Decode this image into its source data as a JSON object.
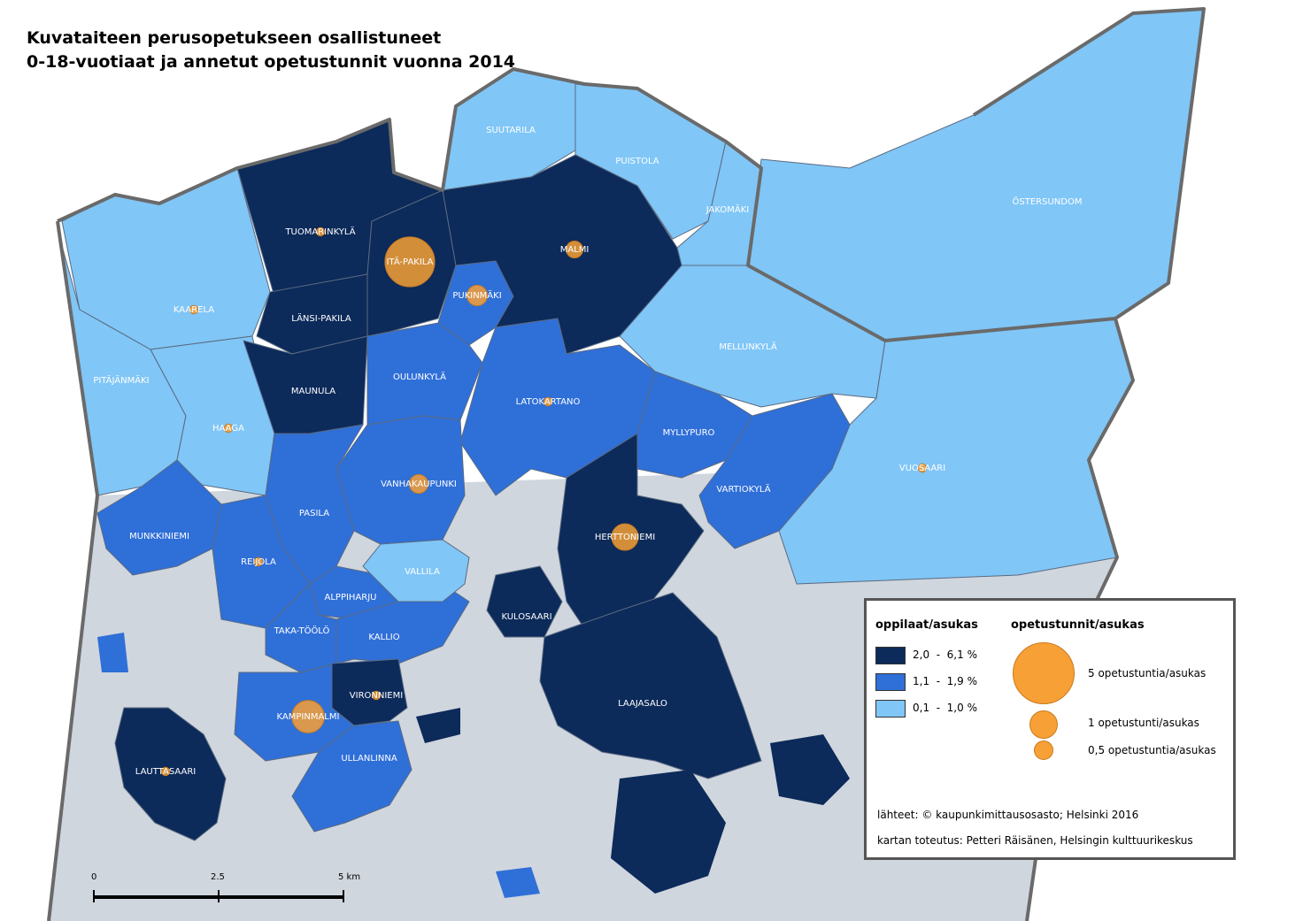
{
  "title": {
    "line1": "Kuvataiteen perusopetukseen osallistuneet",
    "line2": "0-18-vuotiaat ja annetut opetustunnit vuonna 2014"
  },
  "colors": {
    "high": "#0c2a5a",
    "mid": "#2f6fd8",
    "low": "#80c6f7",
    "sea": "#d0d6de",
    "circle": "#f7a035"
  },
  "districts": [
    {
      "name": "SUUTARILA",
      "class": "low"
    },
    {
      "name": "PUISTOLA",
      "class": "low"
    },
    {
      "name": "JAKOMÄKI",
      "class": "low"
    },
    {
      "name": "ÖSTERSUNDOM",
      "class": "low"
    },
    {
      "name": "TUOMARINKYLÄ",
      "class": "high"
    },
    {
      "name": "ITÄ-PAKILA",
      "class": "high"
    },
    {
      "name": "MALMI",
      "class": "high"
    },
    {
      "name": "KAARELA",
      "class": "low"
    },
    {
      "name": "LÄNSI-PAKILA",
      "class": "high"
    },
    {
      "name": "PUKINMÄKI",
      "class": "mid"
    },
    {
      "name": "MELLUNKYLÄ",
      "class": "low"
    },
    {
      "name": "PITÄJÄNMÄKI",
      "class": "low"
    },
    {
      "name": "MAUNULA",
      "class": "high"
    },
    {
      "name": "OULUNKYLÄ",
      "class": "mid"
    },
    {
      "name": "LATOKARTANO",
      "class": "mid"
    },
    {
      "name": "HAAGA",
      "class": "low"
    },
    {
      "name": "MYLLYPURO",
      "class": "mid"
    },
    {
      "name": "VUOSAARI",
      "class": "low"
    },
    {
      "name": "VANHAKAUPUNKI",
      "class": "mid"
    },
    {
      "name": "VARTIOKYLÄ",
      "class": "mid"
    },
    {
      "name": "PASILA",
      "class": "mid"
    },
    {
      "name": "MUNKKINIEMI",
      "class": "mid"
    },
    {
      "name": "HERTTONIEMI",
      "class": "high"
    },
    {
      "name": "REIJOLA",
      "class": "mid"
    },
    {
      "name": "VALLILA",
      "class": "low"
    },
    {
      "name": "ALPPIHARJU",
      "class": "mid"
    },
    {
      "name": "KULOSAARI",
      "class": "high"
    },
    {
      "name": "TAKA-TÖÖLÖ",
      "class": "mid"
    },
    {
      "name": "KALLIO",
      "class": "mid"
    },
    {
      "name": "VIRONNIEMI",
      "class": "high"
    },
    {
      "name": "LAAJASALO",
      "class": "high"
    },
    {
      "name": "KAMPINMALMI",
      "class": "mid"
    },
    {
      "name": "ULLANLINNA",
      "class": "mid"
    },
    {
      "name": "LAUTTASAARI",
      "class": "high"
    }
  ],
  "lessons": [
    {
      "district": "TUOMARINKYLÄ",
      "value": 0.1
    },
    {
      "district": "ITÄ-PAKILA",
      "value": 3.5
    },
    {
      "district": "MALMI",
      "value": 0.4
    },
    {
      "district": "KAARELA",
      "value": 0.1
    },
    {
      "district": "PUKINMÄKI",
      "value": 0.6
    },
    {
      "district": "LATOKARTANO",
      "value": 0.1
    },
    {
      "district": "HAAGA",
      "value": 0.1
    },
    {
      "district": "VANHAKAUPUNKI",
      "value": 0.5
    },
    {
      "district": "VUOSAARI",
      "value": 0.1
    },
    {
      "district": "HERTTONIEMI",
      "value": 1.0
    },
    {
      "district": "REIJOLA",
      "value": 0.1
    },
    {
      "district": "VIRONNIEMI",
      "value": 0.1
    },
    {
      "district": "KAMPINMALMI",
      "value": 1.5
    },
    {
      "district": "LAUTTASAARI",
      "value": 0.1
    }
  ],
  "legend": {
    "left_title": "oppilaat/asukas",
    "classes": [
      {
        "key": "high",
        "label": "2,0  -  6,1 %"
      },
      {
        "key": "mid",
        "label": "1,1  -  1,9 %"
      },
      {
        "key": "low",
        "label": "0,1  -  1,0 %"
      }
    ],
    "right_title": "opetustunnit/asukas",
    "circles": [
      {
        "value": 5,
        "label": "5 opetustuntia/asukas"
      },
      {
        "value": 1,
        "label": "1 opetustunti/asukas"
      },
      {
        "value": 0.5,
        "label": "0,5 opetustuntia/asukas"
      }
    ],
    "source": "lähteet: © kaupunkimittausosasto; Helsinki 2016",
    "author": "kartan toteutus: Petteri Räisänen, Helsingin kulttuurikeskus"
  },
  "scalebar": {
    "ticks": [
      "0",
      "2.5",
      "5 km"
    ]
  }
}
